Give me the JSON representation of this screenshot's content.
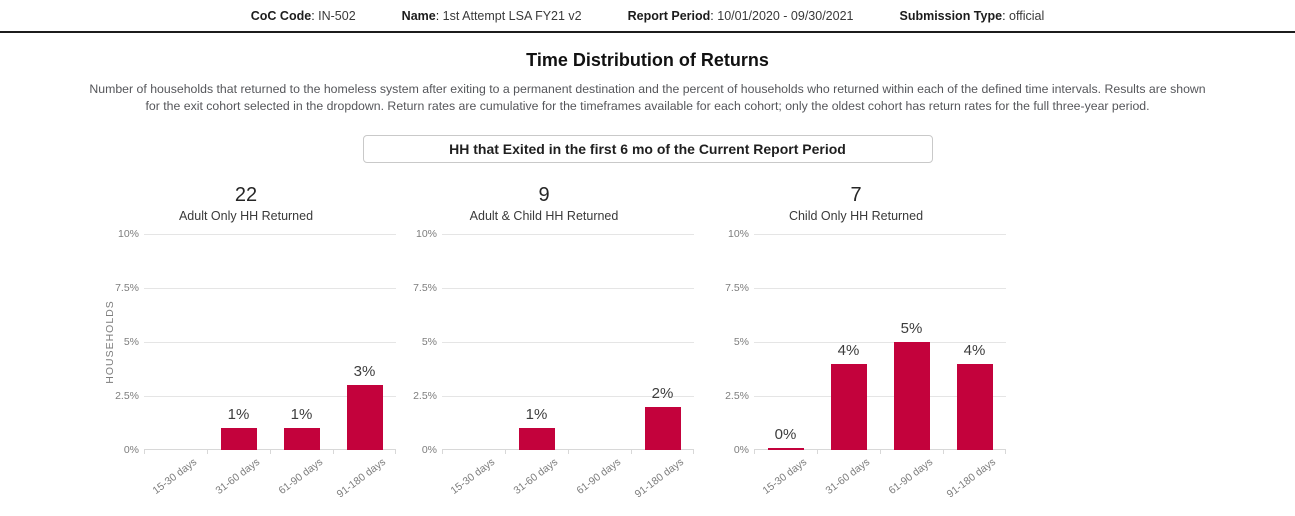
{
  "header": {
    "items": [
      {
        "label": "CoC Code",
        "value": "IN-502"
      },
      {
        "label": "Name",
        "value": "1st Attempt LSA FY21 v2"
      },
      {
        "label": "Report Period",
        "value": "10/01/2020 - 09/30/2021"
      },
      {
        "label": "Submission Type",
        "value": "official"
      }
    ]
  },
  "page": {
    "title": "Time Distribution of Returns",
    "description": "Number of households that returned to the homeless system after exiting to a permanent destination and the percent of households who returned within each of the defined time intervals. Results are shown for the exit cohort selected in the dropdown. Return rates are cumulative for the timeframes available for each cohort; only the oldest cohort has return rates for the full three-year period."
  },
  "cohort_selector": {
    "value": "HH that Exited in the first 6 mo of the Current Report Period"
  },
  "colors": {
    "bar": "#c3023c",
    "gridline": "#e5e5e5",
    "axis_line": "#d8d8d8",
    "axis_text": "#7d7d7d",
    "value_label_text": "#3d3d3d"
  },
  "chart_data": [
    {
      "type": "bar",
      "title": "22",
      "subtitle": "Adult Only HH Returned",
      "ylabel": "HOUSEHOLDS",
      "unit": "%",
      "categories": [
        "15-30 days",
        "31-60 days",
        "61-90 days",
        "91-180 days"
      ],
      "values": [
        null,
        1,
        1,
        3
      ],
      "labels": [
        "",
        "1%",
        "1%",
        "3%"
      ],
      "yticks": [
        "10%",
        "7.5%",
        "5%",
        "2.5%",
        "0%"
      ],
      "ylim": [
        0,
        10
      ],
      "grid": true,
      "legend": "none"
    },
    {
      "type": "bar",
      "title": "9",
      "subtitle": "Adult & Child HH Returned",
      "ylabel": "",
      "unit": "%",
      "categories": [
        "15-30 days",
        "31-60 days",
        "61-90 days",
        "91-180 days"
      ],
      "values": [
        null,
        1,
        null,
        2
      ],
      "labels": [
        "",
        "1%",
        "",
        "2%"
      ],
      "yticks": [
        "10%",
        "7.5%",
        "5%",
        "2.5%",
        "0%"
      ],
      "ylim": [
        0,
        10
      ],
      "grid": true,
      "legend": "none"
    },
    {
      "type": "bar",
      "title": "7",
      "subtitle": "Child Only HH Returned",
      "ylabel": "",
      "unit": "%",
      "categories": [
        "15-30 days",
        "31-60 days",
        "61-90 days",
        "91-180 days"
      ],
      "values": [
        0,
        4,
        5,
        4
      ],
      "labels": [
        "0%",
        "4%",
        "5%",
        "4%"
      ],
      "yticks": [
        "10%",
        "7.5%",
        "5%",
        "2.5%",
        "0%"
      ],
      "ylim": [
        0,
        10
      ],
      "grid": true,
      "legend": "none"
    }
  ]
}
